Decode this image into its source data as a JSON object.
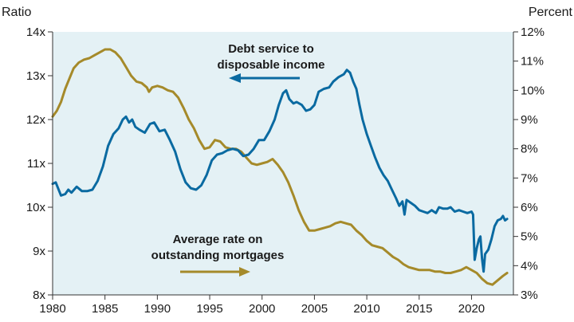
{
  "chart_data": {
    "type": "line",
    "plot_background": "#e4f1f5",
    "left_axis": {
      "title": "Ratio",
      "ylim": [
        8,
        14
      ],
      "ticks": [
        8,
        9,
        10,
        11,
        12,
        13,
        14
      ],
      "tick_labels": [
        "8x",
        "9x",
        "10x",
        "11x",
        "12x",
        "13x",
        "14x"
      ]
    },
    "right_axis": {
      "title": "Percent",
      "ylim": [
        3,
        12
      ],
      "ticks": [
        3,
        4,
        5,
        6,
        7,
        8,
        9,
        10,
        11,
        12
      ],
      "tick_labels": [
        "3%",
        "4%",
        "5%",
        "6%",
        "7%",
        "8%",
        "9%",
        "10%",
        "11%",
        "12%"
      ]
    },
    "x_axis": {
      "xlim": [
        1980,
        2024
      ],
      "ticks": [
        1980,
        1985,
        1990,
        1995,
        2000,
        2005,
        2010,
        2015,
        2020
      ],
      "tick_labels": [
        "1980",
        "1985",
        "1990",
        "1995",
        "2000",
        "2005",
        "2010",
        "2015",
        "2020"
      ]
    },
    "series": [
      {
        "name": "Debt service to disposable income",
        "axis": "right",
        "color": "#0a6aa1",
        "points": [
          [
            1980.0,
            6.8
          ],
          [
            1980.3,
            6.85
          ],
          [
            1980.8,
            6.4
          ],
          [
            1981.2,
            6.45
          ],
          [
            1981.5,
            6.6
          ],
          [
            1981.8,
            6.5
          ],
          [
            1982.3,
            6.7
          ],
          [
            1982.8,
            6.55
          ],
          [
            1983.3,
            6.55
          ],
          [
            1983.8,
            6.6
          ],
          [
            1984.3,
            6.9
          ],
          [
            1984.8,
            7.4
          ],
          [
            1985.3,
            8.1
          ],
          [
            1985.8,
            8.5
          ],
          [
            1986.3,
            8.7
          ],
          [
            1986.7,
            9.0
          ],
          [
            1987.0,
            9.1
          ],
          [
            1987.3,
            8.9
          ],
          [
            1987.6,
            9.0
          ],
          [
            1987.9,
            8.75
          ],
          [
            1988.3,
            8.65
          ],
          [
            1988.8,
            8.55
          ],
          [
            1989.3,
            8.85
          ],
          [
            1989.7,
            8.9
          ],
          [
            1990.2,
            8.6
          ],
          [
            1990.7,
            8.65
          ],
          [
            1991.2,
            8.3
          ],
          [
            1991.7,
            7.9
          ],
          [
            1992.2,
            7.3
          ],
          [
            1992.7,
            6.85
          ],
          [
            1993.2,
            6.65
          ],
          [
            1993.7,
            6.6
          ],
          [
            1994.2,
            6.75
          ],
          [
            1994.7,
            7.1
          ],
          [
            1995.2,
            7.6
          ],
          [
            1995.7,
            7.8
          ],
          [
            1996.2,
            7.85
          ],
          [
            1996.7,
            7.95
          ],
          [
            1997.2,
            8.0
          ],
          [
            1997.7,
            7.95
          ],
          [
            1998.2,
            7.75
          ],
          [
            1998.7,
            7.8
          ],
          [
            1999.2,
            8.0
          ],
          [
            1999.7,
            8.3
          ],
          [
            2000.2,
            8.3
          ],
          [
            2000.7,
            8.6
          ],
          [
            2001.2,
            9.0
          ],
          [
            2001.6,
            9.5
          ],
          [
            2002.0,
            9.9
          ],
          [
            2002.3,
            10.0
          ],
          [
            2002.6,
            9.7
          ],
          [
            2003.0,
            9.55
          ],
          [
            2003.3,
            9.6
          ],
          [
            2003.8,
            9.5
          ],
          [
            2004.2,
            9.3
          ],
          [
            2004.6,
            9.35
          ],
          [
            2005.0,
            9.5
          ],
          [
            2005.4,
            9.95
          ],
          [
            2005.9,
            10.05
          ],
          [
            2006.4,
            10.1
          ],
          [
            2006.8,
            10.3
          ],
          [
            2007.3,
            10.45
          ],
          [
            2007.8,
            10.55
          ],
          [
            2008.1,
            10.7
          ],
          [
            2008.4,
            10.6
          ],
          [
            2008.7,
            10.3
          ],
          [
            2009.0,
            10.05
          ],
          [
            2009.3,
            9.5
          ],
          [
            2009.6,
            9.0
          ],
          [
            2010.0,
            8.5
          ],
          [
            2010.4,
            8.1
          ],
          [
            2010.8,
            7.7
          ],
          [
            2011.2,
            7.35
          ],
          [
            2011.6,
            7.1
          ],
          [
            2012.0,
            6.9
          ],
          [
            2012.4,
            6.6
          ],
          [
            2012.8,
            6.3
          ],
          [
            2013.1,
            6.05
          ],
          [
            2013.4,
            6.2
          ],
          [
            2013.6,
            5.75
          ],
          [
            2013.8,
            6.25
          ],
          [
            2014.2,
            6.15
          ],
          [
            2014.6,
            6.05
          ],
          [
            2015.0,
            5.9
          ],
          [
            2015.4,
            5.85
          ],
          [
            2015.8,
            5.8
          ],
          [
            2016.2,
            5.9
          ],
          [
            2016.6,
            5.8
          ],
          [
            2016.9,
            6.0
          ],
          [
            2017.3,
            5.95
          ],
          [
            2017.7,
            5.95
          ],
          [
            2018.0,
            6.0
          ],
          [
            2018.4,
            5.85
          ],
          [
            2018.8,
            5.9
          ],
          [
            2019.2,
            5.85
          ],
          [
            2019.6,
            5.8
          ],
          [
            2020.0,
            5.85
          ],
          [
            2020.15,
            5.75
          ],
          [
            2020.3,
            4.2
          ],
          [
            2020.5,
            4.6
          ],
          [
            2020.7,
            4.9
          ],
          [
            2020.85,
            5.0
          ],
          [
            2021.0,
            4.25
          ],
          [
            2021.15,
            3.8
          ],
          [
            2021.3,
            4.4
          ],
          [
            2021.6,
            4.55
          ],
          [
            2021.9,
            4.9
          ],
          [
            2022.2,
            5.35
          ],
          [
            2022.5,
            5.55
          ],
          [
            2022.8,
            5.6
          ],
          [
            2023.0,
            5.7
          ],
          [
            2023.2,
            5.55
          ],
          [
            2023.4,
            5.6
          ]
        ]
      },
      {
        "name": "Average rate on outstanding mortgages",
        "axis": "right",
        "color": "#a58a2a",
        "points": [
          [
            1980.0,
            9.1
          ],
          [
            1980.4,
            9.3
          ],
          [
            1980.8,
            9.6
          ],
          [
            1981.2,
            10.05
          ],
          [
            1981.6,
            10.4
          ],
          [
            1982.0,
            10.75
          ],
          [
            1982.5,
            10.95
          ],
          [
            1983.0,
            11.05
          ],
          [
            1983.5,
            11.1
          ],
          [
            1984.0,
            11.2
          ],
          [
            1984.5,
            11.3
          ],
          [
            1985.0,
            11.4
          ],
          [
            1985.5,
            11.4
          ],
          [
            1986.0,
            11.3
          ],
          [
            1986.5,
            11.1
          ],
          [
            1987.0,
            10.8
          ],
          [
            1987.5,
            10.5
          ],
          [
            1988.0,
            10.3
          ],
          [
            1988.5,
            10.25
          ],
          [
            1989.0,
            10.1
          ],
          [
            1989.2,
            9.95
          ],
          [
            1989.5,
            10.1
          ],
          [
            1990.0,
            10.15
          ],
          [
            1990.5,
            10.1
          ],
          [
            1991.0,
            10.0
          ],
          [
            1991.5,
            9.95
          ],
          [
            1992.0,
            9.75
          ],
          [
            1992.5,
            9.4
          ],
          [
            1993.0,
            9.0
          ],
          [
            1993.5,
            8.7
          ],
          [
            1994.0,
            8.3
          ],
          [
            1994.5,
            8.0
          ],
          [
            1995.0,
            8.05
          ],
          [
            1995.5,
            8.3
          ],
          [
            1996.0,
            8.25
          ],
          [
            1996.5,
            8.05
          ],
          [
            1997.0,
            8.0
          ],
          [
            1997.5,
            8.0
          ],
          [
            1998.0,
            7.9
          ],
          [
            1998.5,
            7.7
          ],
          [
            1999.0,
            7.5
          ],
          [
            1999.5,
            7.45
          ],
          [
            2000.0,
            7.5
          ],
          [
            2000.5,
            7.55
          ],
          [
            2001.0,
            7.65
          ],
          [
            2001.5,
            7.45
          ],
          [
            2002.0,
            7.2
          ],
          [
            2002.5,
            6.85
          ],
          [
            2003.0,
            6.4
          ],
          [
            2003.5,
            5.9
          ],
          [
            2004.0,
            5.5
          ],
          [
            2004.5,
            5.2
          ],
          [
            2005.0,
            5.2
          ],
          [
            2005.5,
            5.25
          ],
          [
            2006.0,
            5.3
          ],
          [
            2006.5,
            5.35
          ],
          [
            2007.0,
            5.45
          ],
          [
            2007.5,
            5.5
          ],
          [
            2008.0,
            5.45
          ],
          [
            2008.5,
            5.4
          ],
          [
            2009.0,
            5.2
          ],
          [
            2009.5,
            5.05
          ],
          [
            2010.0,
            4.85
          ],
          [
            2010.5,
            4.7
          ],
          [
            2011.0,
            4.65
          ],
          [
            2011.5,
            4.6
          ],
          [
            2012.0,
            4.45
          ],
          [
            2012.5,
            4.3
          ],
          [
            2013.0,
            4.2
          ],
          [
            2013.5,
            4.05
          ],
          [
            2014.0,
            3.95
          ],
          [
            2014.5,
            3.9
          ],
          [
            2015.0,
            3.85
          ],
          [
            2015.5,
            3.85
          ],
          [
            2016.0,
            3.85
          ],
          [
            2016.5,
            3.8
          ],
          [
            2017.0,
            3.8
          ],
          [
            2017.5,
            3.75
          ],
          [
            2018.0,
            3.75
          ],
          [
            2018.5,
            3.8
          ],
          [
            2019.0,
            3.85
          ],
          [
            2019.5,
            3.95
          ],
          [
            2020.0,
            3.85
          ],
          [
            2020.5,
            3.75
          ],
          [
            2021.0,
            3.55
          ],
          [
            2021.5,
            3.4
          ],
          [
            2022.0,
            3.35
          ],
          [
            2022.5,
            3.5
          ],
          [
            2023.0,
            3.65
          ],
          [
            2023.4,
            3.75
          ]
        ]
      }
    ],
    "annotations": {
      "debt_service_line1": "Debt service to",
      "debt_service_line2": "disposable income",
      "mortgage_line1": "Average rate on",
      "mortgage_line2": "outstanding mortgages"
    }
  }
}
